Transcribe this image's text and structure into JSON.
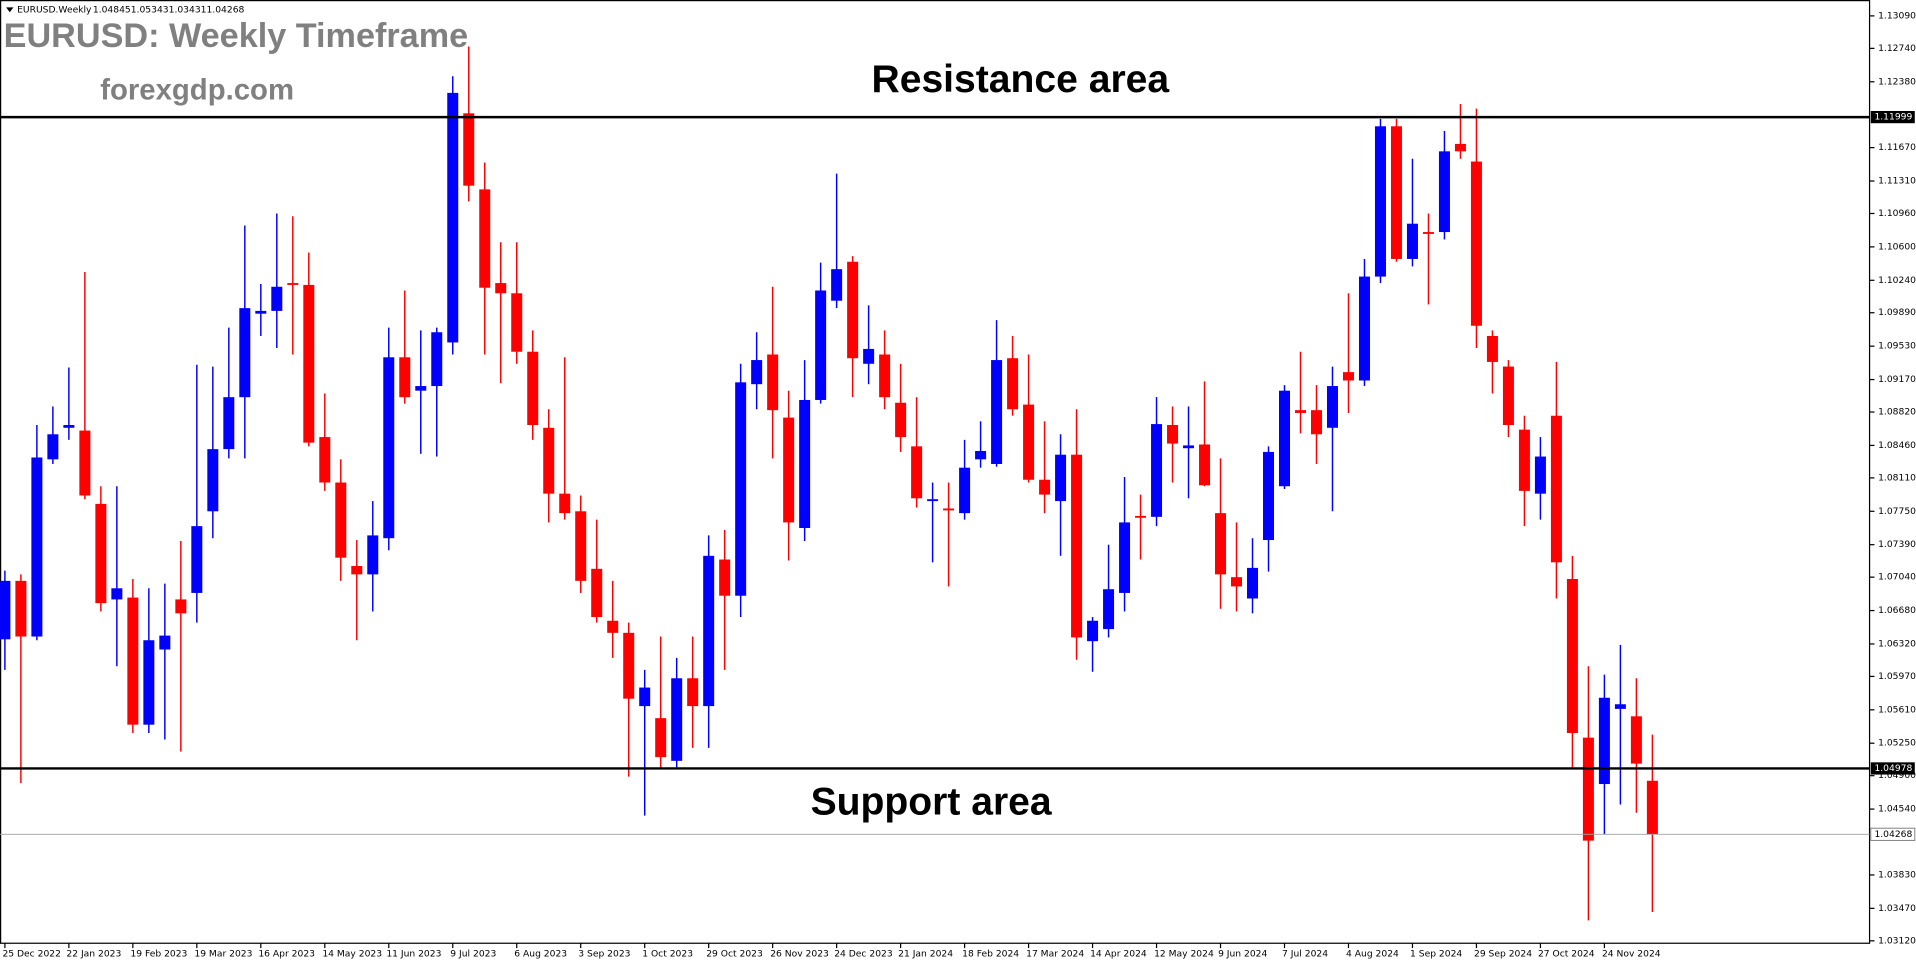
{
  "chart_data": {
    "type": "candlestick",
    "symbol": "EURUSD.Weekly",
    "title": "EURUSD: Weekly Timeframe",
    "subtitle": "forexgdp.com",
    "up_color": "#0000ff",
    "down_color": "#ff0000",
    "categories": [
      "25 Dec 2022",
      null,
      null,
      null,
      "22 Jan 2023",
      null,
      null,
      null,
      "19 Feb 2023",
      null,
      null,
      null,
      "19 Mar 2023",
      null,
      null,
      null,
      "16 Apr 2023",
      null,
      null,
      null,
      "14 May 2023",
      null,
      null,
      null,
      "11 Jun 2023",
      null,
      null,
      null,
      "9 Jul 2023",
      null,
      null,
      null,
      "6 Aug 2023",
      null,
      null,
      null,
      "3 Sep 2023",
      null,
      null,
      null,
      "1 Oct 2023",
      null,
      null,
      null,
      "29 Oct 2023",
      null,
      null,
      null,
      "26 Nov 2023",
      null,
      null,
      null,
      "24 Dec 2023",
      null,
      null,
      null,
      "21 Jan 2024",
      null,
      null,
      null,
      "18 Feb 2024",
      null,
      null,
      null,
      "17 Mar 2024",
      null,
      null,
      null,
      "14 Apr 2024",
      null,
      null,
      null,
      "12 May 2024",
      null,
      null,
      null,
      "9 Jun 2024",
      null,
      null,
      null,
      "7 Jul 2024",
      null,
      null,
      null,
      "4 Aug 2024",
      null,
      null,
      null,
      "1 Sep 2024",
      null,
      null,
      null,
      "29 Sep 2024",
      null,
      null,
      null,
      "27 Oct 2024",
      null,
      null,
      null,
      "24 Nov 2024",
      null,
      null,
      null
    ],
    "open": [
      1.0637,
      1.07,
      1.064,
      1.0831,
      1.0865,
      1.0862,
      1.0783,
      1.068,
      1.0682,
      1.0545,
      1.0626,
      1.068,
      1.0687,
      1.0775,
      1.0842,
      1.0898,
      1.0988,
      1.0991,
      1.1021,
      1.1019,
      1.0855,
      1.0806,
      1.0716,
      1.0707,
      1.0746,
      1.0941,
      1.0905,
      1.091,
      1.0957,
      1.1204,
      1.1122,
      1.1021,
      1.101,
      1.0947,
      1.0865,
      1.0794,
      1.0775,
      1.0713,
      1.0657,
      1.0644,
      1.0565,
      1.0552,
      1.0506,
      1.0595,
      1.0565,
      1.0723,
      1.0684,
      1.0912,
      1.0944,
      1.0876,
      1.0757,
      1.0895,
      1.1002,
      1.1044,
      1.0934,
      1.0944,
      1.0892,
      1.0845,
      1.0786,
      1.0778,
      1.0773,
      1.0831,
      1.0826,
      1.094,
      1.089,
      1.0809,
      1.0786,
      1.0836,
      1.0635,
      1.0648,
      1.0687,
      1.077,
      1.0769,
      1.0868,
      1.0843,
      1.0847,
      1.0773,
      1.0704,
      1.0681,
      1.0744,
      1.0802,
      1.0884,
      1.0884,
      1.0865,
      1.0925,
      1.0916,
      1.1028,
      1.119,
      1.1047,
      1.1076,
      1.1076,
      1.1171,
      1.1152,
      1.0964,
      1.0931,
      1.0863,
      1.0794,
      1.0878,
      1.0702,
      1.0531,
      1.0481,
      1.0562,
      1.0554,
      1.04845
    ],
    "high": [
      1.0711,
      1.0707,
      1.0868,
      1.0888,
      1.093,
      1.1033,
      1.0802,
      1.0802,
      1.0702,
      1.0692,
      1.0697,
      1.0743,
      1.0933,
      1.0931,
      1.0973,
      1.1083,
      1.102,
      1.1096,
      1.1093,
      1.1054,
      1.0902,
      1.0831,
      1.0744,
      1.0786,
      1.0973,
      1.1013,
      1.097,
      1.0973,
      1.1244,
      1.1276,
      1.1151,
      1.1065,
      1.1065,
      1.097,
      1.0885,
      1.0941,
      1.0792,
      1.0766,
      1.07,
      1.0655,
      1.0604,
      1.064,
      1.0617,
      1.064,
      1.0749,
      1.0755,
      1.0934,
      1.0968,
      1.1017,
      1.0905,
      1.0938,
      1.1043,
      1.1139,
      1.105,
      1.0997,
      1.097,
      1.0934,
      1.0898,
      1.0806,
      1.0806,
      1.0852,
      1.0872,
      1.0981,
      1.0964,
      1.0944,
      1.0872,
      1.0858,
      1.0885,
      1.0661,
      1.0739,
      1.0812,
      1.0793,
      1.0898,
      1.0888,
      1.0888,
      1.0915,
      1.0832,
      1.0763,
      1.0746,
      1.0845,
      1.0911,
      1.0947,
      1.0911,
      1.0931,
      1.101,
      1.1047,
      1.1198,
      1.1198,
      1.1155,
      1.1096,
      1.1185,
      1.1214,
      1.1209,
      1.097,
      1.0938,
      1.0878,
      1.0855,
      1.0936,
      1.0727,
      1.0608,
      1.0599,
      1.0631,
      1.0595,
      1.05343
    ],
    "low": [
      1.0604,
      1.0482,
      1.0636,
      1.0826,
      1.0852,
      1.0788,
      1.0667,
      1.0608,
      1.0536,
      1.0536,
      1.0529,
      1.0516,
      1.0655,
      1.0746,
      1.0832,
      1.0832,
      1.0964,
      1.0951,
      1.0944,
      1.0845,
      1.0797,
      1.07,
      1.0636,
      1.0667,
      1.0733,
      1.0891,
      1.0837,
      1.0834,
      1.0944,
      1.1109,
      1.0944,
      1.0913,
      1.0934,
      1.0852,
      1.0763,
      1.0766,
      1.0687,
      1.0655,
      1.0617,
      1.0489,
      1.0447,
      1.0497,
      1.0499,
      1.052,
      1.052,
      1.0604,
      1.0661,
      1.0885,
      1.0832,
      1.0722,
      1.0743,
      1.0891,
      1.0994,
      1.0898,
      1.0912,
      1.0885,
      1.0839,
      1.0779,
      1.072,
      1.0694,
      1.0766,
      1.0822,
      1.0823,
      1.0878,
      1.0806,
      1.0773,
      1.0727,
      1.0615,
      1.0602,
      1.0639,
      1.0667,
      1.0723,
      1.0759,
      1.0806,
      1.0789,
      1.0802,
      1.067,
      1.0667,
      1.0665,
      1.071,
      1.0799,
      1.0859,
      1.0826,
      1.0775,
      1.0881,
      1.091,
      1.1021,
      1.1044,
      1.1039,
      1.0998,
      1.1068,
      1.1155,
      1.0951,
      1.0902,
      1.0855,
      1.0759,
      1.0766,
      1.0681,
      1.0499,
      1.0334,
      1.0427,
      1.0459,
      1.045,
      1.03431
    ],
    "close": [
      1.07,
      1.064,
      1.0833,
      1.0858,
      1.0868,
      1.0792,
      1.0676,
      1.0692,
      1.0545,
      1.0636,
      1.0641,
      1.0665,
      1.0759,
      1.0842,
      1.0898,
      1.0994,
      1.0991,
      1.1017,
      1.1019,
      1.0849,
      1.0806,
      1.0725,
      1.0707,
      1.0749,
      1.0941,
      1.0898,
      1.091,
      1.0968,
      1.1226,
      1.1126,
      1.1016,
      1.101,
      1.0947,
      1.0868,
      1.0794,
      1.0773,
      1.07,
      1.0661,
      1.0644,
      1.0573,
      1.0585,
      1.051,
      1.0595,
      1.0565,
      1.0727,
      1.0684,
      1.0914,
      1.0938,
      1.0884,
      1.0763,
      1.0895,
      1.1013,
      1.1036,
      1.094,
      1.095,
      1.0898,
      1.0855,
      1.0789,
      1.0788,
      1.0776,
      1.0822,
      1.084,
      1.0938,
      1.0885,
      1.0809,
      1.0793,
      1.0836,
      1.0639,
      1.0657,
      1.0691,
      1.0763,
      1.0769,
      1.0869,
      1.0848,
      1.0846,
      1.0803,
      1.0707,
      1.0694,
      1.0714,
      1.0839,
      1.0905,
      1.0881,
      1.0858,
      1.091,
      1.0916,
      1.1028,
      1.119,
      1.1047,
      1.1085,
      1.1074,
      1.1163,
      1.1163,
      1.0975,
      1.0936,
      1.0868,
      1.0797,
      1.0834,
      1.072,
      1.0536,
      1.042,
      1.0574,
      1.0567,
      1.0503,
      1.04268
    ],
    "ylim": [
      1.03094,
      1.13235
    ],
    "yticks": [
      {
        "value": 1.1309,
        "label": "1.13090"
      },
      {
        "value": 1.1274,
        "label": "1.12740"
      },
      {
        "value": 1.1238,
        "label": "1.12380"
      },
      {
        "value": 1.1167,
        "label": "1.11670"
      },
      {
        "value": 1.1131,
        "label": "1.11310"
      },
      {
        "value": 1.1096,
        "label": "1.10960"
      },
      {
        "value": 1.106,
        "label": "1.10600"
      },
      {
        "value": 1.1024,
        "label": "1.10240"
      },
      {
        "value": 1.0989,
        "label": "1.09890"
      },
      {
        "value": 1.0953,
        "label": "1.09530"
      },
      {
        "value": 1.0917,
        "label": "1.09170"
      },
      {
        "value": 1.0882,
        "label": "1.08820"
      },
      {
        "value": 1.0846,
        "label": "1.08460"
      },
      {
        "value": 1.0811,
        "label": "1.08110"
      },
      {
        "value": 1.0775,
        "label": "1.07750"
      },
      {
        "value": 1.0739,
        "label": "1.07390"
      },
      {
        "value": 1.0704,
        "label": "1.07040"
      },
      {
        "value": 1.0668,
        "label": "1.06680"
      },
      {
        "value": 1.0632,
        "label": "1.06320"
      },
      {
        "value": 1.0597,
        "label": "1.05970"
      },
      {
        "value": 1.0561,
        "label": "1.05610"
      },
      {
        "value": 1.0525,
        "label": "1.05250"
      },
      {
        "value": 1.049,
        "label": "1.04900"
      },
      {
        "value": 1.0454,
        "label": "1.04540"
      },
      {
        "value": 1.0383,
        "label": "1.03830"
      },
      {
        "value": 1.0347,
        "label": "1.03470"
      },
      {
        "value": 1.0312,
        "label": "1.03120"
      }
    ],
    "levels": [
      {
        "value": 1.11999,
        "text": "Resistance area"
      },
      {
        "value": 1.04978,
        "text": "Support area"
      }
    ],
    "last_price": 1.04268
  }
}
